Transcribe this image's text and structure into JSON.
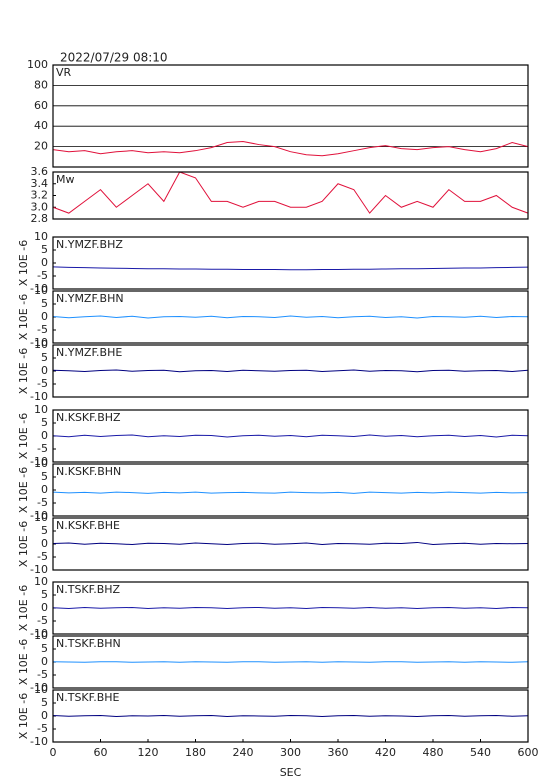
{
  "chart_data": [
    {
      "type": "line",
      "title": "2022/07/29 08:10",
      "label": "VR",
      "x": [
        0,
        20,
        40,
        60,
        80,
        100,
        120,
        140,
        160,
        180,
        200,
        220,
        240,
        260,
        280,
        300,
        320,
        340,
        360,
        380,
        400,
        420,
        440,
        460,
        480,
        500,
        520,
        540,
        560,
        580,
        600
      ],
      "values": [
        17,
        15,
        16,
        13,
        15,
        16,
        14,
        15,
        14,
        16,
        19,
        24,
        25,
        22,
        20,
        15,
        12,
        11,
        13,
        16,
        19,
        21,
        18,
        17,
        19,
        20,
        17,
        15,
        18,
        24,
        20
      ],
      "color": "#e0103a",
      "xlim": [
        0,
        600
      ],
      "ylim": [
        0,
        100
      ],
      "yticks": [
        20,
        40,
        60,
        80,
        100
      ],
      "grid": true
    },
    {
      "type": "line",
      "label": "Mw",
      "x": [
        0,
        20,
        40,
        60,
        80,
        100,
        120,
        140,
        160,
        180,
        200,
        220,
        240,
        260,
        280,
        300,
        320,
        340,
        360,
        380,
        400,
        420,
        440,
        460,
        480,
        500,
        520,
        540,
        560,
        580,
        600
      ],
      "values": [
        3.0,
        2.9,
        3.1,
        3.3,
        3.0,
        3.2,
        3.4,
        3.1,
        3.6,
        3.5,
        3.1,
        3.1,
        3.0,
        3.1,
        3.1,
        3.0,
        3.0,
        3.1,
        3.4,
        3.3,
        2.9,
        3.2,
        3.0,
        3.1,
        3.0,
        3.3,
        3.1,
        3.1,
        3.2,
        3.0,
        2.9
      ],
      "color": "#e0103a",
      "xlim": [
        0,
        600
      ],
      "ylim": [
        2.8,
        3.6
      ],
      "yticks": [
        2.8,
        {
          "value": 3.0,
          "label": "3.0"
        },
        3.2,
        3.4,
        3.6
      ],
      "grid": false
    },
    {
      "type": "line",
      "label": "N.YMZF.BHZ",
      "ylabel": "X 10E -6",
      "x": [
        0,
        20,
        40,
        60,
        80,
        100,
        120,
        140,
        160,
        180,
        200,
        220,
        240,
        260,
        280,
        300,
        320,
        340,
        360,
        380,
        400,
        420,
        440,
        460,
        480,
        500,
        520,
        540,
        560,
        580,
        600
      ],
      "values": [
        -1.5,
        -1.7,
        -1.8,
        -1.9,
        -2.0,
        -2.1,
        -2.2,
        -2.2,
        -2.3,
        -2.3,
        -2.4,
        -2.4,
        -2.5,
        -2.5,
        -2.5,
        -2.6,
        -2.6,
        -2.5,
        -2.5,
        -2.4,
        -2.4,
        -2.3,
        -2.2,
        -2.2,
        -2.1,
        -2.0,
        -1.9,
        -1.9,
        -1.8,
        -1.7,
        -1.6
      ],
      "color": "#1a1aa8",
      "xlim": [
        0,
        600
      ],
      "ylim": [
        -10,
        10
      ],
      "yticks": [
        -10,
        -5,
        0,
        5,
        10
      ],
      "grid": false
    },
    {
      "type": "line",
      "label": "N.YMZF.BHN",
      "ylabel": "X 10E -6",
      "x": [
        0,
        20,
        40,
        60,
        80,
        100,
        120,
        140,
        160,
        180,
        200,
        220,
        240,
        260,
        280,
        300,
        320,
        340,
        360,
        380,
        400,
        420,
        440,
        460,
        480,
        500,
        520,
        540,
        560,
        580,
        600
      ],
      "values": [
        0.2,
        -0.3,
        0.1,
        0.4,
        -0.2,
        0.3,
        -0.4,
        0.1,
        0.2,
        -0.1,
        0.3,
        -0.3,
        0.2,
        0.1,
        -0.2,
        0.4,
        -0.1,
        0.2,
        -0.3,
        0.1,
        0.3,
        -0.2,
        0.1,
        -0.4,
        0.2,
        0.1,
        -0.1,
        0.3,
        -0.2,
        0.2,
        0.1
      ],
      "color": "#1e90ff",
      "xlim": [
        0,
        600
      ],
      "ylim": [
        -10,
        10
      ],
      "yticks": [
        -10,
        -5,
        0,
        5,
        10
      ],
      "grid": false
    },
    {
      "type": "line",
      "label": "N.YMZF.BHE",
      "ylabel": "X 10E -6",
      "x": [
        0,
        20,
        40,
        60,
        80,
        100,
        120,
        140,
        160,
        180,
        200,
        220,
        240,
        260,
        280,
        300,
        320,
        340,
        360,
        380,
        400,
        420,
        440,
        460,
        480,
        500,
        520,
        540,
        560,
        580,
        600
      ],
      "values": [
        0.3,
        0.1,
        -0.2,
        0.2,
        0.4,
        -0.1,
        0.2,
        0.3,
        -0.3,
        0.1,
        0.2,
        -0.2,
        0.3,
        0.1,
        -0.1,
        0.2,
        0.3,
        -0.2,
        0.1,
        0.4,
        -0.1,
        0.2,
        0.1,
        -0.3,
        0.2,
        0.3,
        -0.1,
        0.1,
        0.2,
        -0.2,
        0.3
      ],
      "color": "#000080",
      "xlim": [
        0,
        600
      ],
      "ylim": [
        -10,
        10
      ],
      "yticks": [
        -10,
        -5,
        0,
        5,
        10
      ],
      "grid": false
    },
    {
      "type": "line",
      "label": "N.KSKF.BHZ",
      "ylabel": "X 10E -6",
      "x": [
        0,
        20,
        40,
        60,
        80,
        100,
        120,
        140,
        160,
        180,
        200,
        220,
        240,
        260,
        280,
        300,
        320,
        340,
        360,
        380,
        400,
        420,
        440,
        460,
        480,
        500,
        520,
        540,
        560,
        580,
        600
      ],
      "values": [
        0.1,
        -0.3,
        0.3,
        -0.2,
        0.2,
        0.4,
        -0.3,
        0.1,
        -0.2,
        0.3,
        0.2,
        -0.4,
        0.1,
        0.3,
        -0.1,
        0.2,
        -0.3,
        0.3,
        0.1,
        -0.2,
        0.4,
        -0.1,
        0.2,
        -0.3,
        0.1,
        0.3,
        -0.2,
        0.2,
        -0.4,
        0.3,
        0.1
      ],
      "color": "#1a1aa8",
      "xlim": [
        0,
        600
      ],
      "ylim": [
        -10,
        10
      ],
      "yticks": [
        -10,
        -5,
        0,
        5,
        10
      ],
      "grid": false
    },
    {
      "type": "line",
      "label": "N.KSKF.BHN",
      "ylabel": "X 10E -6",
      "x": [
        0,
        20,
        40,
        60,
        80,
        100,
        120,
        140,
        160,
        180,
        200,
        220,
        240,
        260,
        280,
        300,
        320,
        340,
        360,
        380,
        400,
        420,
        440,
        460,
        480,
        500,
        520,
        540,
        560,
        580,
        600
      ],
      "values": [
        -0.8,
        -1.1,
        -0.9,
        -1.2,
        -0.8,
        -1.0,
        -1.3,
        -0.9,
        -1.1,
        -0.8,
        -1.2,
        -1.0,
        -0.9,
        -1.1,
        -1.2,
        -0.8,
        -1.0,
        -1.1,
        -0.9,
        -1.3,
        -0.8,
        -1.0,
        -1.2,
        -0.9,
        -1.1,
        -0.8,
        -1.0,
        -1.2,
        -0.9,
        -1.1,
        -1.0
      ],
      "color": "#1e90ff",
      "xlim": [
        0,
        600
      ],
      "ylim": [
        -10,
        10
      ],
      "yticks": [
        -10,
        -5,
        0,
        5,
        10
      ],
      "grid": false
    },
    {
      "type": "line",
      "label": "N.KSKF.BHE",
      "ylabel": "X 10E -6",
      "x": [
        0,
        20,
        40,
        60,
        80,
        100,
        120,
        140,
        160,
        180,
        200,
        220,
        240,
        260,
        280,
        300,
        320,
        340,
        360,
        380,
        400,
        420,
        440,
        460,
        480,
        500,
        520,
        540,
        560,
        580,
        600
      ],
      "values": [
        0.2,
        0.4,
        -0.1,
        0.3,
        0.1,
        -0.2,
        0.3,
        0.2,
        -0.1,
        0.4,
        0.1,
        -0.2,
        0.2,
        0.3,
        -0.1,
        0.1,
        0.4,
        -0.2,
        0.2,
        0.1,
        -0.1,
        0.3,
        0.2,
        0.6,
        -0.2,
        0.1,
        0.3,
        -0.1,
        0.2,
        0.1,
        0.2
      ],
      "color": "#000080",
      "xlim": [
        0,
        600
      ],
      "ylim": [
        -10,
        10
      ],
      "yticks": [
        -10,
        -5,
        0,
        5,
        10
      ],
      "grid": false
    },
    {
      "type": "line",
      "label": "N.TSKF.BHZ",
      "ylabel": "X 10E -6",
      "x": [
        0,
        20,
        40,
        60,
        80,
        100,
        120,
        140,
        160,
        180,
        200,
        220,
        240,
        260,
        280,
        300,
        320,
        340,
        360,
        380,
        400,
        420,
        440,
        460,
        480,
        500,
        520,
        540,
        560,
        580,
        600
      ],
      "values": [
        0.1,
        -0.2,
        0.2,
        -0.1,
        0.1,
        0.2,
        -0.2,
        0.1,
        -0.1,
        0.2,
        0.1,
        -0.2,
        0.1,
        0.2,
        -0.1,
        0.1,
        -0.2,
        0.2,
        0.1,
        -0.1,
        0.2,
        -0.1,
        0.1,
        -0.2,
        0.1,
        0.2,
        -0.1,
        0.1,
        -0.2,
        0.2,
        0.1
      ],
      "color": "#1a1aa8",
      "xlim": [
        0,
        600
      ],
      "ylim": [
        -10,
        10
      ],
      "yticks": [
        -10,
        -5,
        0,
        5,
        10
      ],
      "grid": false
    },
    {
      "type": "line",
      "label": "N.TSKF.BHN",
      "ylabel": "X 10E -6",
      "x": [
        0,
        20,
        40,
        60,
        80,
        100,
        120,
        140,
        160,
        180,
        200,
        220,
        240,
        260,
        280,
        300,
        320,
        340,
        360,
        380,
        400,
        420,
        440,
        460,
        480,
        500,
        520,
        540,
        560,
        580,
        600
      ],
      "values": [
        0.1,
        0.0,
        -0.1,
        0.1,
        0.1,
        -0.1,
        0.0,
        0.1,
        -0.1,
        0.1,
        0.0,
        -0.1,
        0.1,
        0.1,
        -0.1,
        0.0,
        0.1,
        -0.1,
        0.1,
        0.0,
        -0.1,
        0.1,
        0.1,
        -0.1,
        0.0,
        0.1,
        -0.1,
        0.1,
        0.0,
        -0.1,
        0.1
      ],
      "color": "#1e90ff",
      "xlim": [
        0,
        600
      ],
      "ylim": [
        -10,
        10
      ],
      "yticks": [
        -10,
        -5,
        0,
        5,
        10
      ],
      "grid": false
    },
    {
      "type": "line",
      "label": "N.TSKF.BHE",
      "ylabel": "X 10E -6",
      "x": [
        0,
        20,
        40,
        60,
        80,
        100,
        120,
        140,
        160,
        180,
        200,
        220,
        240,
        260,
        280,
        300,
        320,
        340,
        360,
        380,
        400,
        420,
        440,
        460,
        480,
        500,
        520,
        540,
        560,
        580,
        600
      ],
      "values": [
        0.2,
        -0.1,
        0.1,
        0.2,
        -0.2,
        0.1,
        0.0,
        0.2,
        -0.1,
        0.1,
        0.2,
        -0.2,
        0.1,
        0.0,
        -0.1,
        0.2,
        0.1,
        -0.2,
        0.1,
        0.2,
        -0.1,
        0.1,
        0.0,
        -0.2,
        0.1,
        0.2,
        -0.1,
        0.1,
        0.2,
        -0.1,
        0.1
      ],
      "color": "#000080",
      "xlim": [
        0,
        600
      ],
      "ylim": [
        -10,
        10
      ],
      "yticks": [
        -10,
        -5,
        0,
        5,
        10
      ],
      "grid": false,
      "xticks": [
        0,
        60,
        120,
        180,
        240,
        300,
        360,
        420,
        480,
        540,
        600
      ],
      "xlabel": "SEC"
    }
  ]
}
